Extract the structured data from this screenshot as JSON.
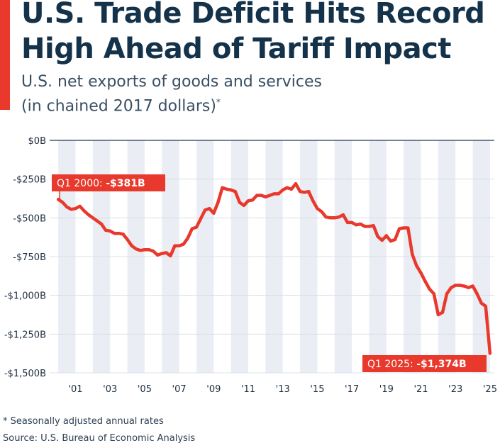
{
  "header": {
    "title": "U.S. Trade Deficit Hits Record\nHigh Ahead of Tariff Impact",
    "subtitle_line1": "U.S. net exports of goods and services",
    "subtitle_line2": "(in chained 2017 dollars)",
    "subtitle_mark": "*"
  },
  "footer": {
    "footnote": "* Seasonally adjusted annual rates",
    "source": "Source: U.S. Bureau of Economic Analysis"
  },
  "colors": {
    "accent": "#e8392c",
    "line": "#e8392c",
    "band": "#eaeef4",
    "axis_text": "#1f2f3f",
    "grid_zero": "#1f3b55",
    "grid": "#d3dae2"
  },
  "chart_data": {
    "type": "line",
    "title": "U.S. net exports of goods and services",
    "ylabel": "in chained 2017 dollars",
    "xlim": [
      1999.5,
      2025.25
    ],
    "ylim": [
      -1500,
      0
    ],
    "yticks": [
      0,
      -250,
      -500,
      -750,
      -1000,
      -1250,
      -1500
    ],
    "ytick_labels": [
      "$0B",
      "-$250B",
      "-$500B",
      "-$750B",
      "-$1,000B",
      "-$1,250B",
      "-$1,500B"
    ],
    "xticks": [
      2001,
      2003,
      2005,
      2007,
      2009,
      2011,
      2013,
      2015,
      2017,
      2019,
      2021,
      2023,
      2025
    ],
    "xtick_labels": [
      "'01",
      "'03",
      "'05",
      "'07",
      "'09",
      "'11",
      "'13",
      "'15",
      "'17",
      "'19",
      "'21",
      "'23",
      "'25"
    ],
    "band_years": [
      2000,
      2002,
      2004,
      2006,
      2008,
      2010,
      2012,
      2014,
      2016,
      2018,
      2020,
      2022,
      2024
    ],
    "series": [
      {
        "name": "Net exports",
        "x": [
          2000.0,
          2000.25,
          2000.5,
          2000.75,
          2001.0,
          2001.25,
          2001.5,
          2001.75,
          2002.0,
          2002.25,
          2002.5,
          2002.75,
          2003.0,
          2003.25,
          2003.5,
          2003.75,
          2004.0,
          2004.25,
          2004.5,
          2004.75,
          2005.0,
          2005.25,
          2005.5,
          2005.75,
          2006.0,
          2006.25,
          2006.5,
          2006.75,
          2007.0,
          2007.25,
          2007.5,
          2007.75,
          2008.0,
          2008.25,
          2008.5,
          2008.75,
          2009.0,
          2009.25,
          2009.5,
          2009.75,
          2010.0,
          2010.25,
          2010.5,
          2010.75,
          2011.0,
          2011.25,
          2011.5,
          2011.75,
          2012.0,
          2012.25,
          2012.5,
          2012.75,
          2013.0,
          2013.25,
          2013.5,
          2013.75,
          2014.0,
          2014.25,
          2014.5,
          2014.75,
          2015.0,
          2015.25,
          2015.5,
          2015.75,
          2016.0,
          2016.25,
          2016.5,
          2016.75,
          2017.0,
          2017.25,
          2017.5,
          2017.75,
          2018.0,
          2018.25,
          2018.5,
          2018.75,
          2019.0,
          2019.25,
          2019.5,
          2019.75,
          2020.0,
          2020.25,
          2020.5,
          2020.75,
          2021.0,
          2021.25,
          2021.5,
          2021.75,
          2022.0,
          2022.25,
          2022.5,
          2022.75,
          2023.0,
          2023.25,
          2023.5,
          2023.75,
          2024.0,
          2024.25,
          2024.5,
          2024.75,
          2025.0
        ],
        "values": [
          -381,
          -400,
          -430,
          -445,
          -440,
          -425,
          -455,
          -480,
          -500,
          -520,
          -540,
          -580,
          -585,
          -600,
          -600,
          -605,
          -640,
          -680,
          -700,
          -710,
          -705,
          -705,
          -715,
          -740,
          -730,
          -725,
          -745,
          -680,
          -680,
          -670,
          -630,
          -570,
          -560,
          -505,
          -450,
          -440,
          -470,
          -400,
          -305,
          -315,
          -320,
          -330,
          -400,
          -420,
          -390,
          -385,
          -355,
          -355,
          -365,
          -355,
          -345,
          -345,
          -320,
          -305,
          -315,
          -280,
          -330,
          -335,
          -330,
          -390,
          -440,
          -460,
          -495,
          -500,
          -500,
          -495,
          -480,
          -530,
          -530,
          -545,
          -540,
          -555,
          -555,
          -550,
          -620,
          -645,
          -615,
          -650,
          -640,
          -570,
          -565,
          -565,
          -735,
          -810,
          -855,
          -910,
          -960,
          -990,
          -1125,
          -1110,
          -990,
          -950,
          -935,
          -935,
          -940,
          -950,
          -940,
          -990,
          -1050,
          -1070,
          -1374
        ]
      }
    ],
    "annotations": [
      {
        "prefix": "Q1 2000: ",
        "value": "-$381B",
        "x": 2000.0,
        "y": -381
      },
      {
        "prefix": "Q1 2025: ",
        "value": "-$1,374B",
        "x": 2025.0,
        "y": -1374
      }
    ]
  }
}
